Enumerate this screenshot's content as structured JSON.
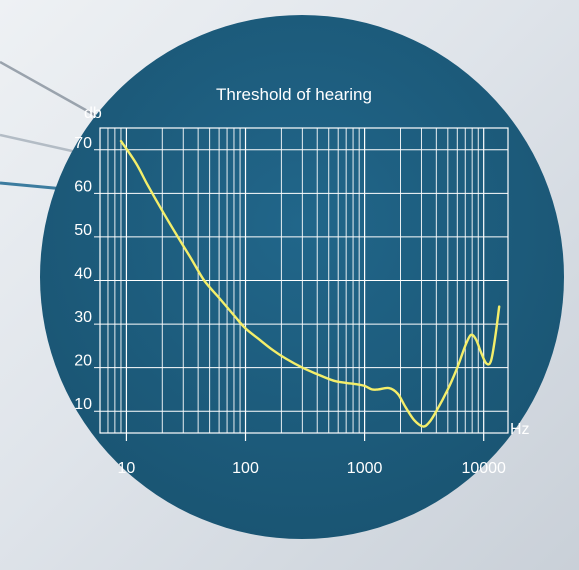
{
  "colors": {
    "circle": "#1f5f7d",
    "grid": "#ffffff",
    "curve": "#f4ee6a",
    "text": "#ffffff",
    "background": "#dfe4ea"
  },
  "chart_data": {
    "type": "line",
    "title": "Threshold of hearing",
    "xlabel": "Hz",
    "ylabel": "db",
    "x_scale": "log",
    "xlim": [
      6,
      16000
    ],
    "ylim": [
      5,
      75
    ],
    "x_ticks": [
      10,
      100,
      1000,
      10000
    ],
    "x_tick_labels": [
      "10",
      "100",
      "1000",
      "10000"
    ],
    "y_ticks": [
      10,
      20,
      30,
      40,
      50,
      60,
      70
    ],
    "y_tick_labels": [
      "10",
      "20",
      "30",
      "40",
      "50",
      "60",
      "70"
    ],
    "grid": true,
    "series": [
      {
        "x": [
          9,
          12,
          15,
          20,
          27,
          35,
          45,
          60,
          80,
          100,
          130,
          170,
          220,
          300,
          400,
          550,
          700,
          850,
          1000,
          1150,
          1300,
          1600,
          1900,
          2200,
          2600,
          3100,
          3500,
          4000,
          5000,
          6000,
          7000,
          7800,
          8600,
          9500,
          10500,
          11500,
          12500,
          13500
        ],
        "y": [
          72,
          67,
          62,
          56,
          50,
          45,
          40,
          36,
          32,
          29,
          26.5,
          24,
          22,
          20,
          18.5,
          17,
          16.5,
          16.2,
          15.8,
          15,
          15,
          15.3,
          14,
          11,
          8,
          6.5,
          7.5,
          10,
          15,
          20,
          25,
          27.5,
          26.5,
          23.5,
          21,
          21.5,
          27,
          34
        ]
      }
    ]
  }
}
